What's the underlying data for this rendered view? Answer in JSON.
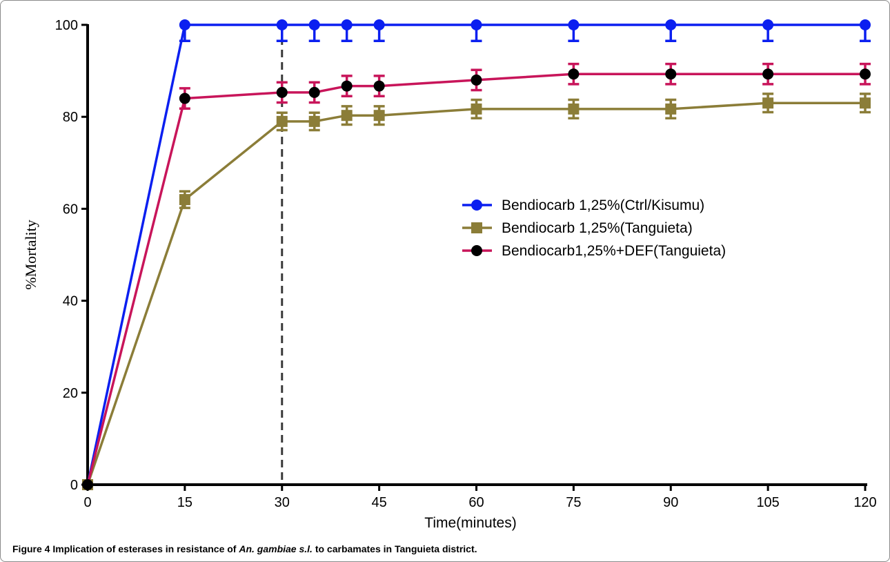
{
  "chart_data": {
    "type": "line",
    "xlabel": "Time(minutes)",
    "ylabel": "%Mortality",
    "xlim": [
      0,
      120
    ],
    "ylim": [
      0,
      100
    ],
    "x_ticks": [
      0,
      15,
      30,
      45,
      60,
      75,
      90,
      105,
      120
    ],
    "y_ticks": [
      0,
      20,
      40,
      60,
      80,
      100
    ],
    "reference_line": {
      "x": 30,
      "style": "dashed"
    },
    "legend_position": "center-right",
    "grid": false,
    "series": [
      {
        "name": "Bendiocarb 1,25%(Ctrl/Kisumu)",
        "color": "#0b1ff0",
        "marker": "circle",
        "x": [
          0,
          15,
          30,
          35,
          40,
          45,
          60,
          75,
          90,
          105,
          120
        ],
        "y": [
          0,
          100,
          100,
          100,
          100,
          100,
          100,
          100,
          100,
          100,
          100
        ],
        "err": [
          0,
          3.5,
          3.5,
          3.5,
          3.5,
          3.5,
          3.5,
          3.5,
          3.5,
          3.5,
          3.5
        ]
      },
      {
        "name": "Bendiocarb 1,25%(Tanguieta)",
        "color": "#8b7d38",
        "marker": "square",
        "x": [
          0,
          15,
          30,
          35,
          40,
          45,
          60,
          75,
          90,
          105,
          120
        ],
        "y": [
          0,
          62,
          79,
          79,
          80.3,
          80.3,
          81.7,
          81.7,
          81.7,
          83,
          83
        ],
        "err": [
          0,
          1.8,
          1.9,
          1.9,
          2.0,
          2.0,
          2.0,
          2.0,
          2.0,
          2.0,
          2.0
        ]
      },
      {
        "name": "Bendiocarb1,25%+DEF(Tanguieta)",
        "color": "#c8155a",
        "marker": "circle-black",
        "x": [
          0,
          15,
          30,
          35,
          40,
          45,
          60,
          75,
          90,
          105,
          120
        ],
        "y": [
          0,
          84,
          85.3,
          85.3,
          86.7,
          86.7,
          88,
          89.3,
          89.3,
          89.3,
          89.3
        ],
        "err": [
          0,
          2.2,
          2.2,
          2.2,
          2.2,
          2.2,
          2.2,
          2.2,
          2.2,
          2.2,
          2.2
        ]
      }
    ]
  },
  "caption": {
    "figure_label": "Figure 4",
    "text_before": " Implication of esterases in resistance of ",
    "species": "An. gambiae s.l.",
    "text_after": " to carbamates in Tanguieta district."
  }
}
